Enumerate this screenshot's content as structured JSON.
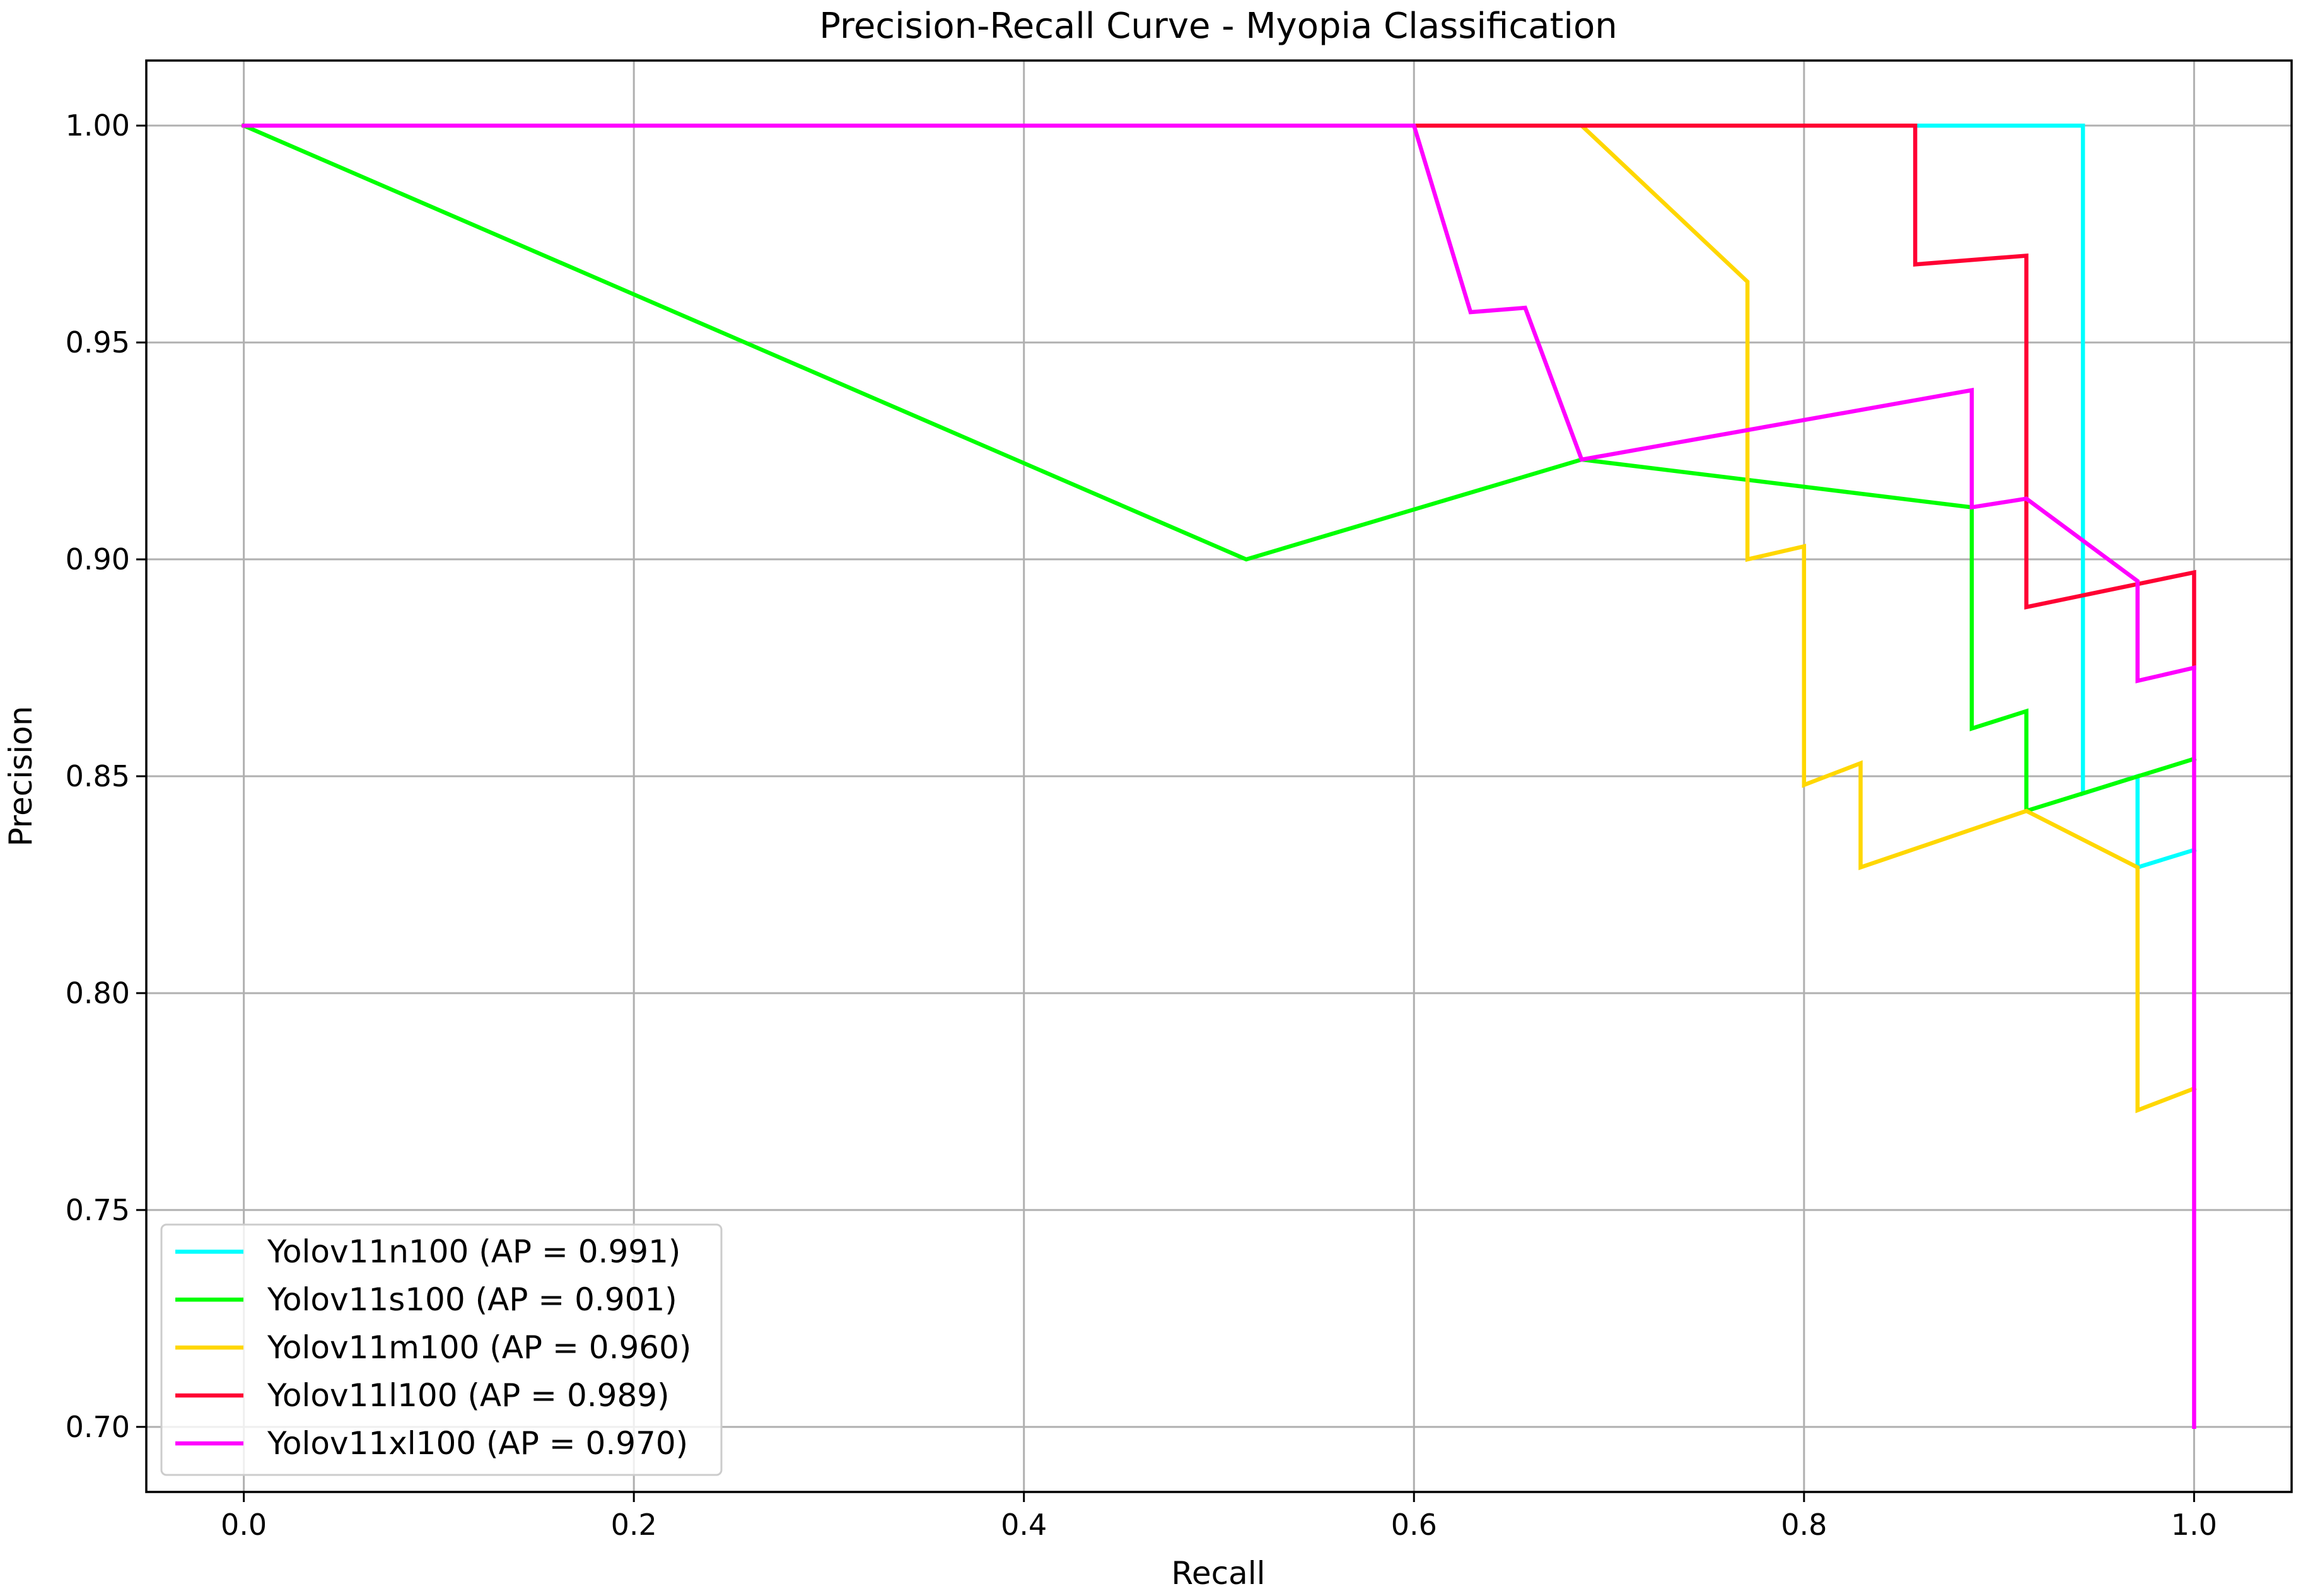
{
  "chart_data": {
    "type": "line",
    "title": "Precision-Recall Curve - Myopia Classification",
    "xlabel": "Recall",
    "ylabel": "Precision",
    "xlim": [
      -0.05,
      1.05
    ],
    "ylim": [
      0.685,
      1.015
    ],
    "xticks": [
      "0.0",
      "0.2",
      "0.4",
      "0.6",
      "0.8",
      "1.0"
    ],
    "xtick_values": [
      0.0,
      0.2,
      0.4,
      0.6,
      0.8,
      1.0
    ],
    "yticks": [
      "0.70",
      "0.75",
      "0.80",
      "0.85",
      "0.90",
      "0.95",
      "1.00"
    ],
    "ytick_values": [
      0.7,
      0.75,
      0.8,
      0.85,
      0.9,
      0.95,
      1.0
    ],
    "grid": true,
    "legend_position": "lower-left",
    "series": [
      {
        "name": "Yolov11n100 (AP = 0.991)",
        "color": "#00ffff",
        "x": [
          0.0,
          0.943,
          0.943,
          0.971,
          0.971,
          1.0
        ],
        "y": [
          1.0,
          1.0,
          0.846,
          0.85,
          0.829,
          0.833
        ]
      },
      {
        "name": "Yolov11s100 (AP = 0.901)",
        "color": "#00ff00",
        "x": [
          0.0,
          0.514,
          0.686,
          0.886,
          0.886,
          0.914,
          0.914,
          1.0
        ],
        "y": [
          1.0,
          0.9,
          0.923,
          0.912,
          0.861,
          0.865,
          0.842,
          0.854
        ]
      },
      {
        "name": "Yolov11m100 (AP = 0.960)",
        "color": "#ffd700",
        "x": [
          0.0,
          0.686,
          0.771,
          0.771,
          0.8,
          0.8,
          0.829,
          0.829,
          0.914,
          0.971,
          0.971,
          1.0
        ],
        "y": [
          1.0,
          1.0,
          0.964,
          0.9,
          0.903,
          0.848,
          0.853,
          0.829,
          0.842,
          0.829,
          0.773,
          0.778
        ]
      },
      {
        "name": "Yolov11l100 (AP = 0.989)",
        "color": "#ff0033",
        "x": [
          0.0,
          0.857,
          0.857,
          0.914,
          0.914,
          1.0,
          1.0
        ],
        "y": [
          1.0,
          1.0,
          0.968,
          0.97,
          0.889,
          0.897,
          0.875
        ]
      },
      {
        "name": "Yolov11xl100 (AP = 0.970)",
        "color": "#ff00ff",
        "x": [
          0.0,
          0.6,
          0.629,
          0.657,
          0.686,
          0.886,
          0.886,
          0.914,
          0.971,
          0.971,
          1.0,
          1.0
        ],
        "y": [
          1.0,
          1.0,
          0.957,
          0.958,
          0.923,
          0.939,
          0.912,
          0.914,
          0.895,
          0.872,
          0.875,
          0.7
        ]
      }
    ]
  }
}
